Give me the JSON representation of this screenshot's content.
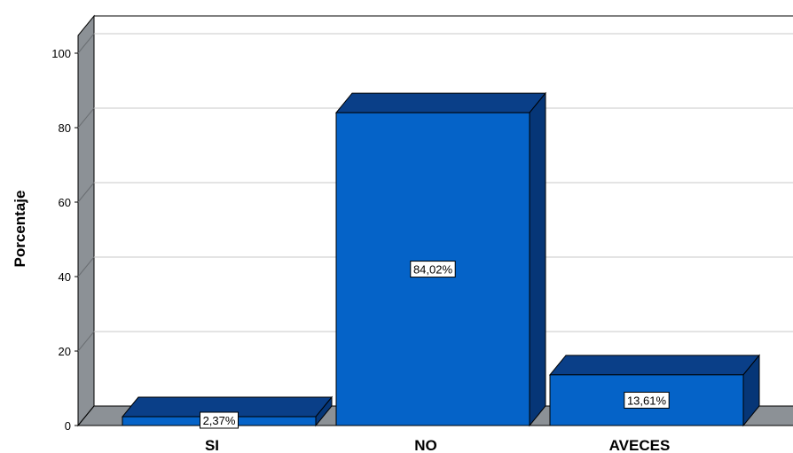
{
  "chart_data": {
    "type": "bar",
    "ylabel": "Porcentaje",
    "ylim": [
      0,
      100
    ],
    "yticks": [
      0,
      20,
      40,
      60,
      80,
      100
    ],
    "categories": [
      "SI",
      "NO",
      "AVECES"
    ],
    "values": [
      2.37,
      84.02,
      13.61
    ],
    "data_labels": [
      "2,37%",
      "84,02%",
      "13,61%"
    ],
    "grid": true,
    "three_d": true,
    "colors": {
      "bar_front": "#0563c8",
      "bar_top": "#0a3f88",
      "bar_side": "#063677",
      "floor": "#8c9196",
      "back_wall": "#ffffff",
      "grid": "#c8c8c8"
    }
  }
}
